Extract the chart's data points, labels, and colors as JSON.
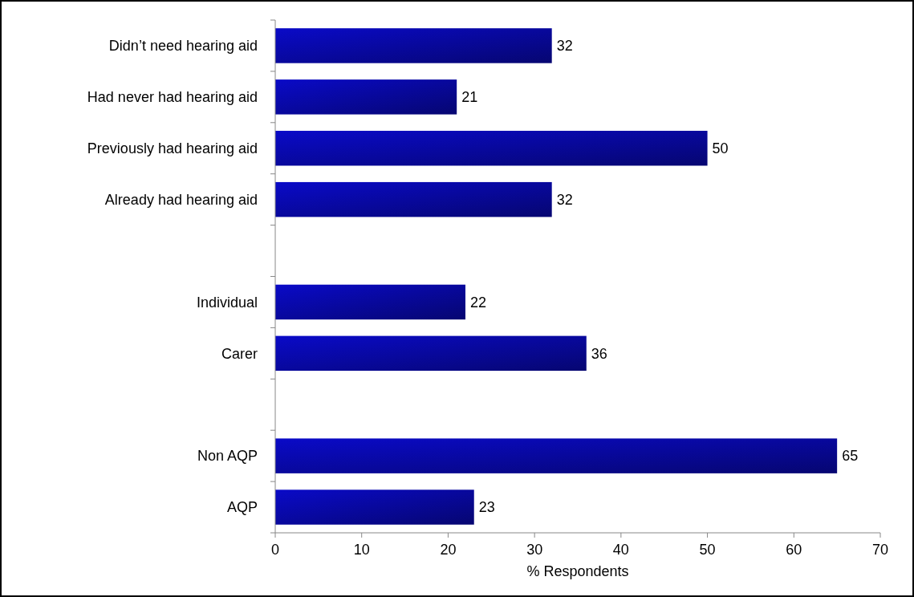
{
  "chart_data": {
    "type": "bar",
    "orientation": "horizontal",
    "categories": [
      "Didn’t need hearing aid",
      "Had never had hearing aid",
      "Previously had hearing aid",
      "Already had hearing aid",
      null,
      "Individual",
      "Carer",
      null,
      "Non AQP",
      "AQP"
    ],
    "values": [
      32,
      21,
      50,
      32,
      null,
      22,
      36,
      null,
      65,
      23
    ],
    "color": "#0a0ac8",
    "data_labels": true,
    "xlabel": "% Respondents",
    "xlim": [
      0,
      70
    ],
    "xticks": [
      0,
      10,
      20,
      30,
      40,
      50,
      60,
      70
    ],
    "grid": false
  }
}
